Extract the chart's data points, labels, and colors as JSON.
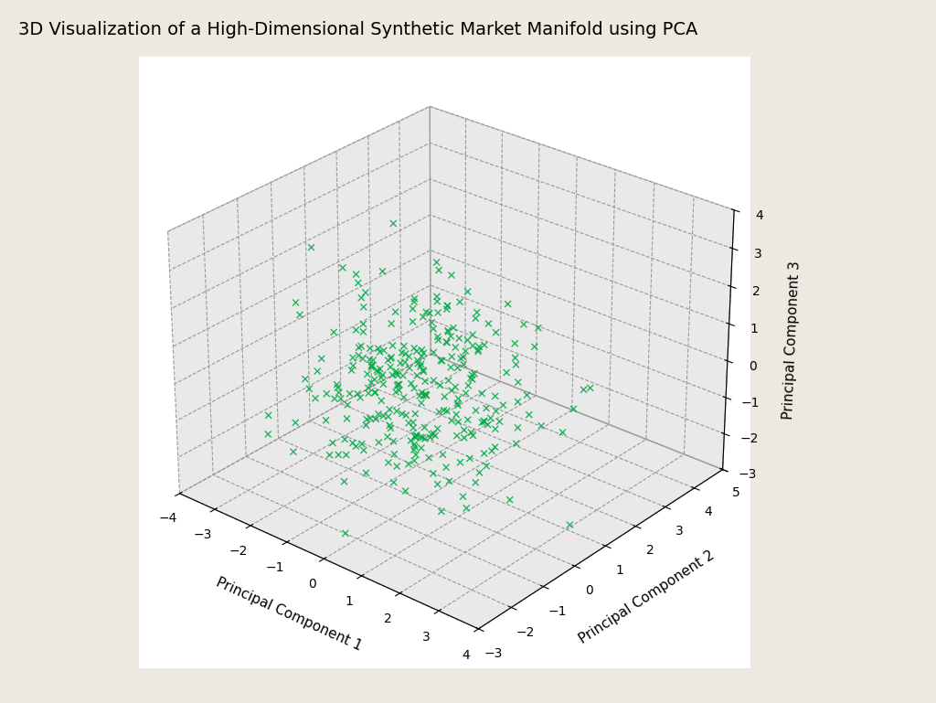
{
  "title": "3D Visualization of a High-Dimensional Synthetic Market Manifold using PCA",
  "xlabel": "Principal Component 1",
  "ylabel": "Principal Component 2",
  "zlabel": "Principal Component 3",
  "marker_color": "#00aa44",
  "marker": "x",
  "marker_size": 5,
  "xlim": [
    -4,
    4
  ],
  "ylim": [
    -3,
    5
  ],
  "zlim": [
    -3,
    4
  ],
  "xticks": [
    -4,
    -3,
    -2,
    -1,
    0,
    1,
    2,
    3,
    4
  ],
  "yticks": [
    -3,
    -2,
    -1,
    0,
    1,
    2,
    3,
    4,
    5
  ],
  "zticks": [
    -3,
    -2,
    -1,
    0,
    1,
    2,
    3,
    4
  ],
  "n_points": 300,
  "random_seed": 42,
  "background_color": "#ede8e0",
  "pane_color": "#e4e4e4",
  "grid_color": "#999999",
  "grid_linestyle": "--",
  "title_fontsize": 14,
  "elev": 28,
  "azim": -50
}
